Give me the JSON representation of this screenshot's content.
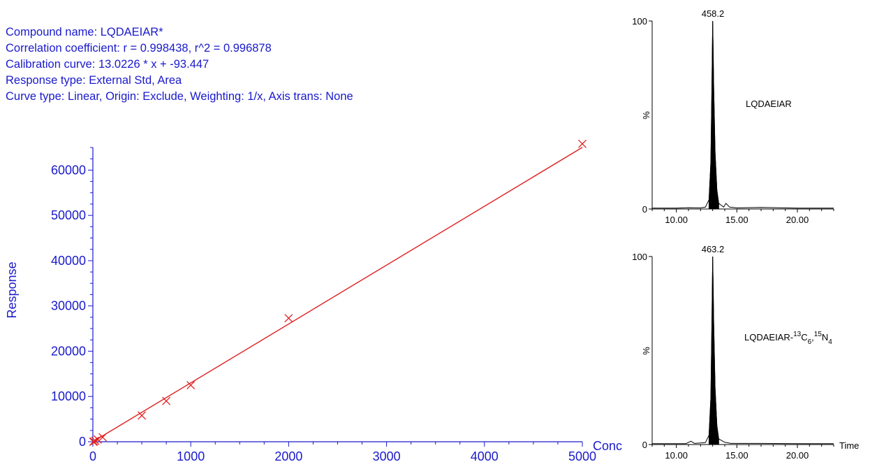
{
  "header": {
    "compound_name": "Compound name: LQDAEIAR*",
    "correlation": "Correlation coefficient: r = 0.998438, r^2 = 0.996878",
    "calibration": "Calibration curve: 13.0226 * x + -93.447",
    "response_type": "Response type: External Std, Area",
    "curve_type": "Curve type: Linear, Origin: Exclude, Weighting: 1/x, Axis trans: None"
  },
  "colors": {
    "text": "#1a1acc",
    "curve": "#e02020",
    "peak": "#000000"
  },
  "chart_data": [
    {
      "type": "scatter",
      "xlabel": "Conc",
      "ylabel": "Response",
      "xlim": [
        0,
        5000
      ],
      "ylim": [
        0,
        65000
      ],
      "x_ticks": [
        0,
        1000,
        2000,
        3000,
        4000,
        5000
      ],
      "y_ticks": [
        0,
        10000,
        20000,
        30000,
        40000,
        50000,
        60000
      ],
      "points": [
        {
          "x": 5,
          "y": 0
        },
        {
          "x": 10,
          "y": 50
        },
        {
          "x": 25,
          "y": 200
        },
        {
          "x": 50,
          "y": 500
        },
        {
          "x": 100,
          "y": 1000
        },
        {
          "x": 500,
          "y": 5800
        },
        {
          "x": 750,
          "y": 9000
        },
        {
          "x": 1000,
          "y": 12500
        },
        {
          "x": 2000,
          "y": 27300
        },
        {
          "x": 5000,
          "y": 65800
        }
      ],
      "fit": {
        "slope": 13.0226,
        "intercept": -93.447
      }
    },
    {
      "type": "line",
      "peak_label": "458.2",
      "annotation": "LQDAEIAR",
      "ylabel": "%",
      "ylim": [
        0,
        100
      ],
      "y_ticks": [
        0,
        100
      ],
      "xlim": [
        8,
        23
      ],
      "x_ticks": [
        10.0,
        15.0,
        20.0
      ],
      "x_tick_labels": [
        "10.00",
        "15.00",
        "20.00"
      ],
      "peak_time": 13.0,
      "points": [
        [
          8.0,
          0.5
        ],
        [
          10.0,
          0.5
        ],
        [
          11.0,
          0.7
        ],
        [
          12.0,
          0.6
        ],
        [
          12.4,
          1.0
        ],
        [
          12.7,
          5
        ],
        [
          12.85,
          25
        ],
        [
          12.95,
          70
        ],
        [
          13.0,
          100
        ],
        [
          13.08,
          65
        ],
        [
          13.2,
          30
        ],
        [
          13.35,
          10
        ],
        [
          13.5,
          3
        ],
        [
          13.9,
          1
        ],
        [
          14.1,
          3
        ],
        [
          14.4,
          1
        ],
        [
          15.0,
          0.6
        ],
        [
          17.0,
          0.8
        ],
        [
          20.0,
          0.5
        ],
        [
          23.0,
          0.5
        ]
      ]
    },
    {
      "type": "line",
      "peak_label": "463.2",
      "annotation_main": "LQDAEIAR-",
      "annotation_parts": [
        {
          "text": "13",
          "pos": "sup"
        },
        {
          "text": "C",
          "pos": "base"
        },
        {
          "text": "6",
          "pos": "sub"
        },
        {
          "text": ",",
          "pos": "base"
        },
        {
          "text": "15",
          "pos": "sup"
        },
        {
          "text": "N",
          "pos": "base"
        },
        {
          "text": "4",
          "pos": "sub"
        }
      ],
      "ylabel": "%",
      "xlabel": "Time",
      "ylim": [
        0,
        100
      ],
      "y_ticks": [
        0,
        100
      ],
      "xlim": [
        8,
        23
      ],
      "x_ticks": [
        10.0,
        15.0,
        20.0
      ],
      "x_tick_labels": [
        "10.00",
        "15.00",
        "20.00"
      ],
      "peak_time": 13.0,
      "points": [
        [
          8.0,
          0.5
        ],
        [
          10.8,
          0.5
        ],
        [
          11.2,
          1.8
        ],
        [
          11.5,
          0.6
        ],
        [
          12.4,
          1.0
        ],
        [
          12.7,
          5
        ],
        [
          12.85,
          25
        ],
        [
          12.95,
          70
        ],
        [
          13.0,
          100
        ],
        [
          13.08,
          65
        ],
        [
          13.2,
          30
        ],
        [
          13.35,
          10
        ],
        [
          13.5,
          3
        ],
        [
          14.0,
          1.2
        ],
        [
          14.5,
          0.6
        ],
        [
          17.0,
          0.6
        ],
        [
          20.0,
          0.5
        ],
        [
          23.0,
          0.5
        ]
      ]
    }
  ]
}
